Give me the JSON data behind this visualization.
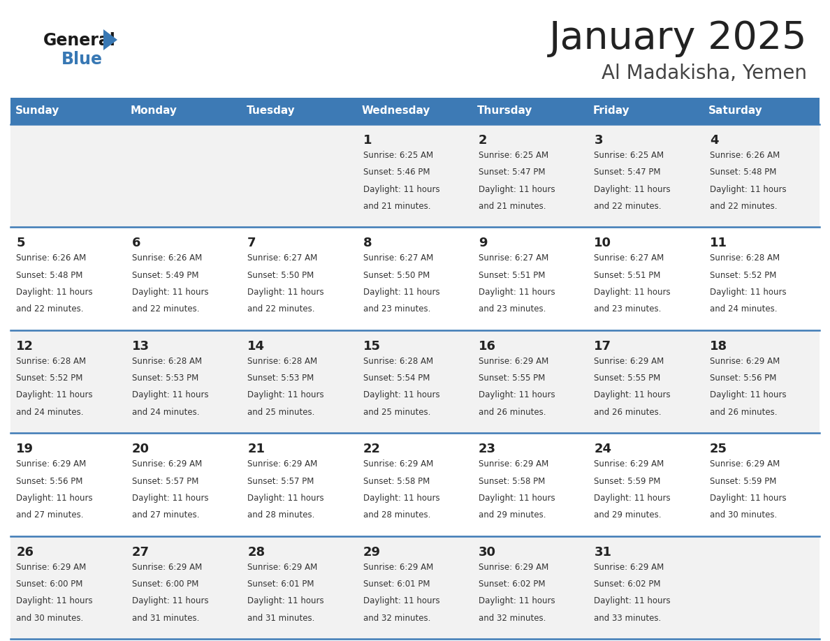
{
  "title": "January 2025",
  "subtitle": "Al Madakisha, Yemen",
  "days_of_week": [
    "Sunday",
    "Monday",
    "Tuesday",
    "Wednesday",
    "Thursday",
    "Friday",
    "Saturday"
  ],
  "header_bg": "#3d7ab5",
  "header_text": "#ffffff",
  "row_bg_odd": "#f2f2f2",
  "row_bg_even": "#ffffff",
  "border_color": "#3d7ab5",
  "day_num_color": "#222222",
  "cell_text_color": "#333333",
  "title_color": "#222222",
  "subtitle_color": "#444444",
  "logo_black": "#1a1a1a",
  "logo_blue": "#3878b4",
  "calendar": [
    [
      {
        "day": null
      },
      {
        "day": null
      },
      {
        "day": null
      },
      {
        "day": 1,
        "sunrise": "6:25 AM",
        "sunset": "5:46 PM",
        "daylight": "11 hours and 21 minutes."
      },
      {
        "day": 2,
        "sunrise": "6:25 AM",
        "sunset": "5:47 PM",
        "daylight": "11 hours and 21 minutes."
      },
      {
        "day": 3,
        "sunrise": "6:25 AM",
        "sunset": "5:47 PM",
        "daylight": "11 hours and 22 minutes."
      },
      {
        "day": 4,
        "sunrise": "6:26 AM",
        "sunset": "5:48 PM",
        "daylight": "11 hours and 22 minutes."
      }
    ],
    [
      {
        "day": 5,
        "sunrise": "6:26 AM",
        "sunset": "5:48 PM",
        "daylight": "11 hours and 22 minutes."
      },
      {
        "day": 6,
        "sunrise": "6:26 AM",
        "sunset": "5:49 PM",
        "daylight": "11 hours and 22 minutes."
      },
      {
        "day": 7,
        "sunrise": "6:27 AM",
        "sunset": "5:50 PM",
        "daylight": "11 hours and 22 minutes."
      },
      {
        "day": 8,
        "sunrise": "6:27 AM",
        "sunset": "5:50 PM",
        "daylight": "11 hours and 23 minutes."
      },
      {
        "day": 9,
        "sunrise": "6:27 AM",
        "sunset": "5:51 PM",
        "daylight": "11 hours and 23 minutes."
      },
      {
        "day": 10,
        "sunrise": "6:27 AM",
        "sunset": "5:51 PM",
        "daylight": "11 hours and 23 minutes."
      },
      {
        "day": 11,
        "sunrise": "6:28 AM",
        "sunset": "5:52 PM",
        "daylight": "11 hours and 24 minutes."
      }
    ],
    [
      {
        "day": 12,
        "sunrise": "6:28 AM",
        "sunset": "5:52 PM",
        "daylight": "11 hours and 24 minutes."
      },
      {
        "day": 13,
        "sunrise": "6:28 AM",
        "sunset": "5:53 PM",
        "daylight": "11 hours and 24 minutes."
      },
      {
        "day": 14,
        "sunrise": "6:28 AM",
        "sunset": "5:53 PM",
        "daylight": "11 hours and 25 minutes."
      },
      {
        "day": 15,
        "sunrise": "6:28 AM",
        "sunset": "5:54 PM",
        "daylight": "11 hours and 25 minutes."
      },
      {
        "day": 16,
        "sunrise": "6:29 AM",
        "sunset": "5:55 PM",
        "daylight": "11 hours and 26 minutes."
      },
      {
        "day": 17,
        "sunrise": "6:29 AM",
        "sunset": "5:55 PM",
        "daylight": "11 hours and 26 minutes."
      },
      {
        "day": 18,
        "sunrise": "6:29 AM",
        "sunset": "5:56 PM",
        "daylight": "11 hours and 26 minutes."
      }
    ],
    [
      {
        "day": 19,
        "sunrise": "6:29 AM",
        "sunset": "5:56 PM",
        "daylight": "11 hours and 27 minutes."
      },
      {
        "day": 20,
        "sunrise": "6:29 AM",
        "sunset": "5:57 PM",
        "daylight": "11 hours and 27 minutes."
      },
      {
        "day": 21,
        "sunrise": "6:29 AM",
        "sunset": "5:57 PM",
        "daylight": "11 hours and 28 minutes."
      },
      {
        "day": 22,
        "sunrise": "6:29 AM",
        "sunset": "5:58 PM",
        "daylight": "11 hours and 28 minutes."
      },
      {
        "day": 23,
        "sunrise": "6:29 AM",
        "sunset": "5:58 PM",
        "daylight": "11 hours and 29 minutes."
      },
      {
        "day": 24,
        "sunrise": "6:29 AM",
        "sunset": "5:59 PM",
        "daylight": "11 hours and 29 minutes."
      },
      {
        "day": 25,
        "sunrise": "6:29 AM",
        "sunset": "5:59 PM",
        "daylight": "11 hours and 30 minutes."
      }
    ],
    [
      {
        "day": 26,
        "sunrise": "6:29 AM",
        "sunset": "6:00 PM",
        "daylight": "11 hours and 30 minutes."
      },
      {
        "day": 27,
        "sunrise": "6:29 AM",
        "sunset": "6:00 PM",
        "daylight": "11 hours and 31 minutes."
      },
      {
        "day": 28,
        "sunrise": "6:29 AM",
        "sunset": "6:01 PM",
        "daylight": "11 hours and 31 minutes."
      },
      {
        "day": 29,
        "sunrise": "6:29 AM",
        "sunset": "6:01 PM",
        "daylight": "11 hours and 32 minutes."
      },
      {
        "day": 30,
        "sunrise": "6:29 AM",
        "sunset": "6:02 PM",
        "daylight": "11 hours and 32 minutes."
      },
      {
        "day": 31,
        "sunrise": "6:29 AM",
        "sunset": "6:02 PM",
        "daylight": "11 hours and 33 minutes."
      },
      {
        "day": null
      }
    ]
  ]
}
